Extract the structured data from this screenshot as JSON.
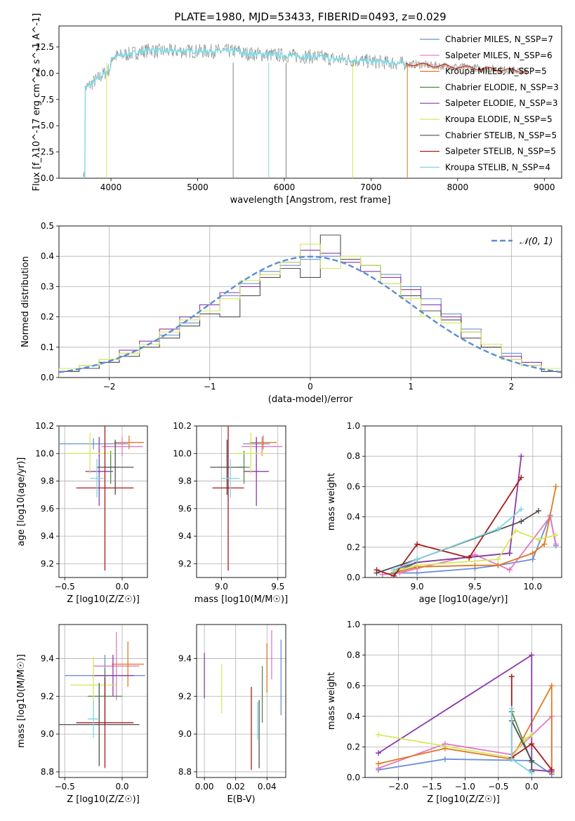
{
  "colors": {
    "chabrier_miles": "#6a8fd6",
    "salpeter_miles": "#e377c2",
    "kroupa_miles": "#e07a22",
    "chabrier_elodie": "#4f8a4f",
    "salpeter_elodie": "#8b3aa8",
    "kroupa_elodie": "#d6e85a",
    "chabrier_stelib": "#505050",
    "salpeter_stelib": "#a51c1c",
    "kroupa_stelib": "#7fd6e0",
    "data": "#808080",
    "gaussian": "#5a8ed0",
    "grid": "#b0b0b0"
  },
  "chart_data": [
    {
      "id": "spectrum",
      "type": "line",
      "title": "PLATE=1980, MJD=53433, FIBERID=0493, z=0.029",
      "xlabel": "wavelength [Angstrom, rest frame]",
      "ylabel": "Flux [f_λ10^-17 erg cm^-2 s^-1 A^-1]",
      "xlim": [
        3400,
        9200
      ],
      "ylim": [
        0,
        14.5
      ],
      "xticks": [
        "4000",
        "5000",
        "6000",
        "7000",
        "8000",
        "9000"
      ],
      "yticks": [
        "0.0",
        "2.5",
        "5.0",
        "7.5",
        "10.0",
        "12.5"
      ],
      "grid": false,
      "legend_position": "top-right",
      "legend": [
        {
          "key": "chabrier_miles",
          "label": "Chabrier MILES, N_SSP=7"
        },
        {
          "key": "salpeter_miles",
          "label": "Salpeter MILES, N_SSP=6"
        },
        {
          "key": "kroupa_miles",
          "label": "Kroupa MILES, N_SSP=5"
        },
        {
          "key": "chabrier_elodie",
          "label": "Chabrier ELODIE, N_SSP=3"
        },
        {
          "key": "salpeter_elodie",
          "label": "Salpeter ELODIE, N_SSP=3"
        },
        {
          "key": "kroupa_elodie",
          "label": "Kroupa ELODIE, N_SSP=5"
        },
        {
          "key": "chabrier_stelib",
          "label": "Chabrier STELIB, N_SSP=5"
        },
        {
          "key": "salpeter_stelib",
          "label": "Salpeter STELIB, N_SSP=5"
        },
        {
          "key": "kroupa_stelib",
          "label": "Kroupa STELIB, N_SSP=4"
        }
      ],
      "series": [
        {
          "key": "kroupa_stelib",
          "x": [
            3700,
            3800,
            3900,
            4000,
            4100,
            4200,
            4400,
            4600,
            4800,
            5000,
            5200,
            5400,
            5600,
            5800,
            6000,
            6200,
            6400,
            6600,
            6800,
            7000,
            7200,
            7400
          ],
          "y": [
            8.5,
            7.0,
            8.0,
            11.0,
            11.5,
            12.0,
            12.3,
            11.8,
            12.1,
            12.2,
            12.0,
            11.9,
            12.0,
            12.1,
            11.8,
            11.5,
            11.6,
            11.4,
            11.3,
            11.2,
            11.0,
            10.9
          ]
        },
        {
          "key": "salpeter_miles",
          "x": [
            7400,
            7600,
            7800,
            8000,
            8200,
            8400,
            8600,
            8800
          ],
          "y": [
            10.8,
            10.7,
            10.5,
            10.4,
            10.4,
            10.3,
            10.3,
            10.2
          ]
        }
      ]
    },
    {
      "id": "residuals",
      "type": "histogram",
      "xlabel": "(data-model)/error",
      "ylabel": "Normed distribution",
      "xlim": [
        -2.5,
        2.5
      ],
      "ylim": [
        0,
        0.5
      ],
      "xticks": [
        "−2",
        "−1",
        "0",
        "1",
        "2"
      ],
      "yticks": [
        "0.0",
        "0.1",
        "0.2",
        "0.3",
        "0.4",
        "0.5"
      ],
      "grid": true,
      "legend_position": "top-right",
      "legend_label": "𝒩(0, 1)",
      "bins": [
        -2.5,
        -2.3,
        -2.1,
        -1.9,
        -1.7,
        -1.5,
        -1.3,
        -1.1,
        -0.9,
        -0.7,
        -0.5,
        -0.3,
        -0.1,
        0.1,
        0.3,
        0.5,
        0.7,
        0.9,
        1.1,
        1.3,
        1.5,
        1.7,
        1.9,
        2.1,
        2.3,
        2.5
      ],
      "series": [
        {
          "key": "chabrier_miles",
          "values": [
            0.02,
            0.04,
            0.06,
            0.08,
            0.11,
            0.14,
            0.18,
            0.22,
            0.27,
            0.31,
            0.35,
            0.37,
            0.39,
            0.4,
            0.39,
            0.37,
            0.34,
            0.3,
            0.26,
            0.21,
            0.16,
            0.11,
            0.08,
            0.05,
            0.03
          ]
        },
        {
          "key": "salpeter_elodie",
          "values": [
            0.02,
            0.03,
            0.05,
            0.09,
            0.12,
            0.16,
            0.2,
            0.24,
            0.28,
            0.3,
            0.34,
            0.38,
            0.42,
            0.41,
            0.38,
            0.35,
            0.33,
            0.29,
            0.24,
            0.2,
            0.15,
            0.1,
            0.07,
            0.05,
            0.02
          ]
        },
        {
          "key": "chabrier_stelib",
          "values": [
            0.02,
            0.03,
            0.05,
            0.07,
            0.1,
            0.13,
            0.17,
            0.21,
            0.2,
            0.27,
            0.33,
            0.36,
            0.33,
            0.47,
            0.39,
            0.37,
            0.31,
            0.27,
            0.22,
            0.19,
            0.13,
            0.1,
            0.06,
            0.04,
            0.02
          ]
        },
        {
          "key": "kroupa_elodie",
          "values": [
            0.03,
            0.04,
            0.06,
            0.08,
            0.11,
            0.15,
            0.19,
            0.22,
            0.26,
            0.32,
            0.34,
            0.38,
            0.44,
            0.36,
            0.4,
            0.37,
            0.31,
            0.26,
            0.2,
            0.18,
            0.15,
            0.11,
            0.06,
            0.04,
            0.03
          ]
        }
      ],
      "gaussian": {
        "mu": 0,
        "sigma": 1
      }
    },
    {
      "id": "age_vs_Z",
      "type": "errorbar",
      "xlabel": "Z [log10(Z/Z☉)]",
      "ylabel": "age [log10(age/yr)]",
      "xlim": [
        -0.55,
        0.22
      ],
      "ylim": [
        9.1,
        10.2
      ],
      "xticks": [
        "−0.5",
        "0.0"
      ],
      "yticks": [
        "9.2",
        "9.4",
        "9.6",
        "9.8",
        "10.0",
        "10.2"
      ],
      "grid": true,
      "points": [
        {
          "key": "chabrier_miles",
          "x": -0.25,
          "xerr": 0.3,
          "y": 10.07,
          "yerr": 0.04
        },
        {
          "key": "salpeter_miles",
          "x": -0.0,
          "xerr": 0.18,
          "y": 10.05,
          "yerr": 0.07
        },
        {
          "key": "kroupa_miles",
          "x": 0.06,
          "xerr": 0.13,
          "y": 10.08,
          "yerr": 0.05
        },
        {
          "key": "chabrier_elodie",
          "x": -0.1,
          "xerr": 0.05,
          "y": 9.9,
          "yerr": 0.12
        },
        {
          "key": "salpeter_elodie",
          "x": -0.2,
          "xerr": 0.12,
          "y": 9.87,
          "yerr": 0.25
        },
        {
          "key": "kroupa_elodie",
          "x": -0.28,
          "xerr": 0.2,
          "y": 10.0,
          "yerr": 0.15
        },
        {
          "key": "chabrier_stelib",
          "x": -0.06,
          "xerr": 0.16,
          "y": 9.9,
          "yerr": 0.2
        },
        {
          "key": "salpeter_stelib",
          "x": -0.15,
          "xerr": 0.25,
          "y": 9.75,
          "yerr": 0.6
        },
        {
          "key": "kroupa_stelib",
          "x": -0.22,
          "xerr": 0.06,
          "y": 9.82,
          "yerr": 0.14
        }
      ]
    },
    {
      "id": "age_vs_mass",
      "type": "errorbar",
      "xlabel": "mass [log10(M/M☉)]",
      "ylabel": "",
      "xlim": [
        8.78,
        9.57
      ],
      "ylim": [
        9.1,
        10.2
      ],
      "xticks": [
        "9.0",
        "9.5"
      ],
      "yticks": [
        "9.2",
        "9.4",
        "9.6",
        "9.8",
        "10.0",
        "10.2"
      ],
      "grid": true,
      "points": [
        {
          "key": "chabrier_miles",
          "x": 9.31,
          "xerr": 0.12,
          "y": 10.07,
          "yerr": 0.04
        },
        {
          "key": "salpeter_miles",
          "x": 9.36,
          "xerr": 0.18,
          "y": 10.05,
          "yerr": 0.07
        },
        {
          "key": "kroupa_miles",
          "x": 9.37,
          "xerr": 0.12,
          "y": 10.08,
          "yerr": 0.05
        },
        {
          "key": "chabrier_elodie",
          "x": 9.2,
          "xerr": 0.05,
          "y": 9.9,
          "yerr": 0.12
        },
        {
          "key": "salpeter_elodie",
          "x": 9.31,
          "xerr": 0.11,
          "y": 9.87,
          "yerr": 0.25
        },
        {
          "key": "kroupa_elodie",
          "x": 9.26,
          "xerr": 0.15,
          "y": 10.0,
          "yerr": 0.15
        },
        {
          "key": "chabrier_stelib",
          "x": 9.05,
          "xerr": 0.15,
          "y": 9.9,
          "yerr": 0.2
        },
        {
          "key": "salpeter_stelib",
          "x": 9.06,
          "xerr": 0.14,
          "y": 9.75,
          "yerr": 0.6
        },
        {
          "key": "kroupa_stelib",
          "x": 9.08,
          "xerr": 0.08,
          "y": 9.82,
          "yerr": 0.14
        }
      ]
    },
    {
      "id": "weight_vs_age",
      "type": "line",
      "xlabel": "age [log10(age/yr)]",
      "ylabel": "mass weight",
      "xlim": [
        8.55,
        10.25
      ],
      "ylim": [
        0,
        1.0
      ],
      "xticks": [
        "9.0",
        "9.5",
        "10.0"
      ],
      "yticks": [
        "0.0",
        "0.2",
        "0.4",
        "0.6",
        "0.8",
        "1.0"
      ],
      "grid": true,
      "series": [
        {
          "key": "chabrier_miles",
          "x": [
            8.7,
            8.8,
            9.0,
            9.5,
            9.7,
            10.0,
            10.15,
            10.2
          ],
          "y": [
            0.02,
            0.03,
            0.03,
            0.06,
            0.08,
            0.12,
            0.41,
            0.21
          ]
        },
        {
          "key": "salpeter_miles",
          "x": [
            8.7,
            8.85,
            9.0,
            9.5,
            9.8,
            10.15,
            10.2
          ],
          "y": [
            0.02,
            0.03,
            0.06,
            0.15,
            0.05,
            0.4,
            0.22
          ]
        },
        {
          "key": "kroupa_miles",
          "x": [
            8.8,
            9.0,
            9.5,
            9.7,
            10.0,
            10.1,
            10.2
          ],
          "y": [
            0.03,
            0.07,
            0.08,
            0.08,
            0.16,
            0.22,
            0.6
          ]
        },
        {
          "key": "chabrier_elodie",
          "x": [
            8.8,
            9.0,
            9.8
          ],
          "y": [
            0.03,
            0.1,
            0.16
          ]
        },
        {
          "key": "salpeter_elodie",
          "x": [
            8.8,
            9.0,
            9.8,
            9.9
          ],
          "y": [
            0.05,
            0.1,
            0.16,
            0.8
          ]
        },
        {
          "key": "kroupa_elodie",
          "x": [
            8.8,
            9.0,
            9.7,
            9.85,
            10.05,
            10.2
          ],
          "y": [
            0.04,
            0.08,
            0.12,
            0.31,
            0.25,
            0.28
          ]
        },
        {
          "key": "chabrier_stelib",
          "x": [
            8.65,
            9.0,
            9.9,
            10.05
          ],
          "y": [
            0.03,
            0.12,
            0.37,
            0.44
          ]
        },
        {
          "key": "salpeter_stelib",
          "x": [
            8.65,
            8.8,
            9.0,
            9.45,
            9.9
          ],
          "y": [
            0.05,
            0.01,
            0.22,
            0.13,
            0.66
          ]
        },
        {
          "key": "kroupa_stelib",
          "x": [
            8.8,
            9.0,
            9.7,
            9.9
          ],
          "y": [
            0.05,
            0.12,
            0.32,
            0.45
          ]
        }
      ]
    },
    {
      "id": "mass_vs_Z",
      "type": "errorbar",
      "xlabel": "Z [log10(Z/Z☉)]",
      "ylabel": "mass [log10(M/M☉)]",
      "xlim": [
        -0.55,
        0.22
      ],
      "ylim": [
        8.77,
        9.58
      ],
      "xticks": [
        "−0.5",
        "0.0"
      ],
      "yticks": [
        "8.8",
        "9.0",
        "9.2",
        "9.4"
      ],
      "grid": true,
      "points": [
        {
          "key": "chabrier_miles",
          "x": -0.15,
          "xerr": 0.35,
          "y": 9.31,
          "yerr": 0.11
        },
        {
          "key": "salpeter_miles",
          "x": -0.05,
          "xerr": 0.2,
          "y": 9.36,
          "yerr": 0.18
        },
        {
          "key": "kroupa_miles",
          "x": 0.05,
          "xerr": 0.14,
          "y": 9.37,
          "yerr": 0.12
        },
        {
          "key": "chabrier_elodie",
          "x": -0.15,
          "xerr": 0.15,
          "y": 9.2,
          "yerr": 0.15
        },
        {
          "key": "salpeter_elodie",
          "x": -0.08,
          "xerr": 0.18,
          "y": 9.31,
          "yerr": 0.11
        },
        {
          "key": "kroupa_elodie",
          "x": -0.25,
          "xerr": 0.2,
          "y": 9.26,
          "yerr": 0.15
        },
        {
          "key": "chabrier_stelib",
          "x": -0.2,
          "xerr": 0.35,
          "y": 9.05,
          "yerr": 0.22
        },
        {
          "key": "salpeter_stelib",
          "x": -0.15,
          "xerr": 0.25,
          "y": 9.06,
          "yerr": 0.24
        },
        {
          "key": "kroupa_stelib",
          "x": -0.25,
          "xerr": 0.05,
          "y": 9.08,
          "yerr": 0.1
        }
      ]
    },
    {
      "id": "mass_vs_ebv",
      "type": "errorbar",
      "xlabel": "E(B-V)",
      "ylabel": "",
      "xlim": [
        -0.005,
        0.052
      ],
      "ylim": [
        8.77,
        9.58
      ],
      "xticks": [
        "0.00",
        "0.02",
        "0.04"
      ],
      "yticks": [
        "8.8",
        "9.0",
        "9.2",
        "9.4"
      ],
      "grid": true,
      "points": [
        {
          "key": "salpeter_elodie",
          "x": 0.0,
          "xerr": 0,
          "y": 9.31,
          "yerr": 0.12
        },
        {
          "key": "kroupa_elodie",
          "x": 0.011,
          "xerr": 0,
          "y": 9.24,
          "yerr": 0.13
        },
        {
          "key": "salpeter_stelib",
          "x": 0.03,
          "xerr": 0,
          "y": 9.03,
          "yerr": 0.22
        },
        {
          "key": "kroupa_stelib",
          "x": 0.034,
          "xerr": 0,
          "y": 9.07,
          "yerr": 0.1
        },
        {
          "key": "chabrier_stelib",
          "x": 0.035,
          "xerr": 0,
          "y": 9.0,
          "yerr": 0.18
        },
        {
          "key": "chabrier_elodie",
          "x": 0.037,
          "xerr": 0,
          "y": 9.21,
          "yerr": 0.15
        },
        {
          "key": "kroupa_miles",
          "x": 0.04,
          "xerr": 0,
          "y": 9.35,
          "yerr": 0.13
        },
        {
          "key": "salpeter_miles",
          "x": 0.043,
          "xerr": 0,
          "y": 9.42,
          "yerr": 0.13
        },
        {
          "key": "chabrier_miles",
          "x": 0.049,
          "xerr": 0,
          "y": 9.3,
          "yerr": 0.2
        }
      ]
    },
    {
      "id": "weight_vs_Z",
      "type": "line",
      "xlabel": "Z [log10(Z/Z☉)]",
      "ylabel": "mass weight",
      "xlim": [
        -2.5,
        0.45
      ],
      "ylim": [
        0,
        1.0
      ],
      "xticks": [
        "−2.0",
        "−1.5",
        "−1.0",
        "−0.5",
        "0.0"
      ],
      "yticks": [
        "0.0",
        "0.2",
        "0.4",
        "0.6",
        "0.8",
        "1.0"
      ],
      "grid": true,
      "series": [
        {
          "key": "chabrier_miles",
          "x": [
            -2.3,
            -1.3,
            0.0,
            0.3
          ],
          "y": [
            0.05,
            0.12,
            0.11,
            0.02
          ]
        },
        {
          "key": "salpeter_miles",
          "x": [
            -2.3,
            -1.3,
            -0.3,
            0.3,
            0.3
          ],
          "y": [
            0.06,
            0.22,
            0.15,
            0.4,
            0.05
          ]
        },
        {
          "key": "kroupa_miles",
          "x": [
            -2.3,
            -1.3,
            -0.3,
            0.3,
            0.3
          ],
          "y": [
            0.09,
            0.19,
            0.12,
            0.6,
            0.03
          ]
        },
        {
          "key": "chabrier_elodie",
          "x": [
            -0.3,
            0.0
          ],
          "y": [
            0.43,
            0.1
          ]
        },
        {
          "key": "salpeter_elodie",
          "x": [
            -2.3,
            0.0,
            0.0,
            0.3
          ],
          "y": [
            0.16,
            0.8,
            0.05,
            0.04
          ]
        },
        {
          "key": "kroupa_elodie",
          "x": [
            -2.3,
            -0.3,
            -0.1,
            0.0
          ],
          "y": [
            0.28,
            0.13,
            0.25,
            0.28
          ]
        },
        {
          "key": "chabrier_stelib",
          "x": [
            -0.3,
            0.0,
            0.0
          ],
          "y": [
            0.37,
            0.11,
            0.04
          ]
        },
        {
          "key": "salpeter_stelib",
          "x": [
            -0.3,
            -0.3,
            0.0,
            0.3
          ],
          "y": [
            0.66,
            0.13,
            0.22,
            0.05
          ]
        },
        {
          "key": "kroupa_stelib",
          "x": [
            -0.3,
            -0.3,
            0.0
          ],
          "y": [
            0.45,
            0.12,
            0.03
          ]
        }
      ]
    }
  ]
}
